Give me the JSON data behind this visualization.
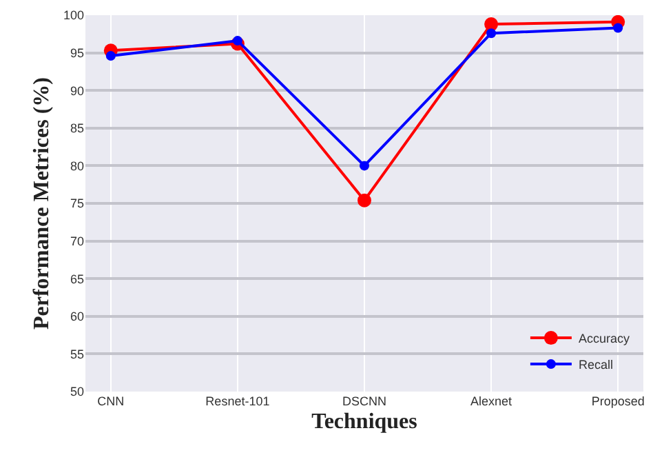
{
  "chart_data": {
    "type": "line",
    "xlabel": "Techniques",
    "ylabel": "Performance Metrices (%)",
    "categories": [
      "CNN",
      "Resnet-101",
      "DSCNN",
      "Alexnet",
      "Proposed"
    ],
    "series": [
      {
        "name": "Accuracy",
        "color": "#ff0000",
        "values": [
          95.3,
          96.2,
          75.4,
          98.8,
          99.1
        ]
      },
      {
        "name": "Recall",
        "color": "#0000ff",
        "values": [
          94.6,
          96.6,
          80.0,
          97.6,
          98.3
        ]
      }
    ],
    "ylim": [
      50,
      100
    ],
    "yticks": [
      50,
      55,
      60,
      65,
      70,
      75,
      80,
      85,
      90,
      95,
      100
    ],
    "grid": true,
    "legend": "bottom right",
    "marker": "circle",
    "line_style": "solid"
  }
}
